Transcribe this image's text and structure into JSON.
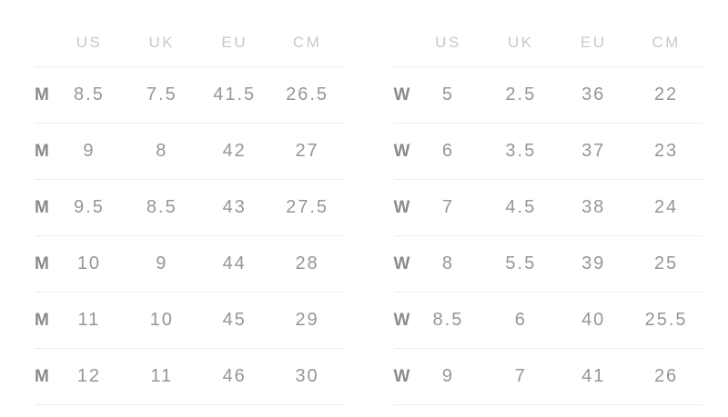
{
  "colors": {
    "header_text": "#c9c9c9",
    "data_text": "#969696",
    "label_text": "#8a8a8a",
    "divider": "#ececec",
    "background": "#ffffff"
  },
  "tables": [
    {
      "id": "men",
      "label": "M",
      "columns": [
        "US",
        "UK",
        "EU",
        "CM"
      ],
      "rows": [
        [
          "8.5",
          "7.5",
          "41.5",
          "26.5"
        ],
        [
          "9",
          "8",
          "42",
          "27"
        ],
        [
          "9.5",
          "8.5",
          "43",
          "27.5"
        ],
        [
          "10",
          "9",
          "44",
          "28"
        ],
        [
          "11",
          "10",
          "45",
          "29"
        ],
        [
          "12",
          "11",
          "46",
          "30"
        ]
      ]
    },
    {
      "id": "women",
      "label": "W",
      "columns": [
        "US",
        "UK",
        "EU",
        "CM"
      ],
      "rows": [
        [
          "5",
          "2.5",
          "36",
          "22"
        ],
        [
          "6",
          "3.5",
          "37",
          "23"
        ],
        [
          "7",
          "4.5",
          "38",
          "24"
        ],
        [
          "8",
          "5.5",
          "39",
          "25"
        ],
        [
          "8.5",
          "6",
          "40",
          "25.5"
        ],
        [
          "9",
          "7",
          "41",
          "26"
        ]
      ]
    }
  ]
}
